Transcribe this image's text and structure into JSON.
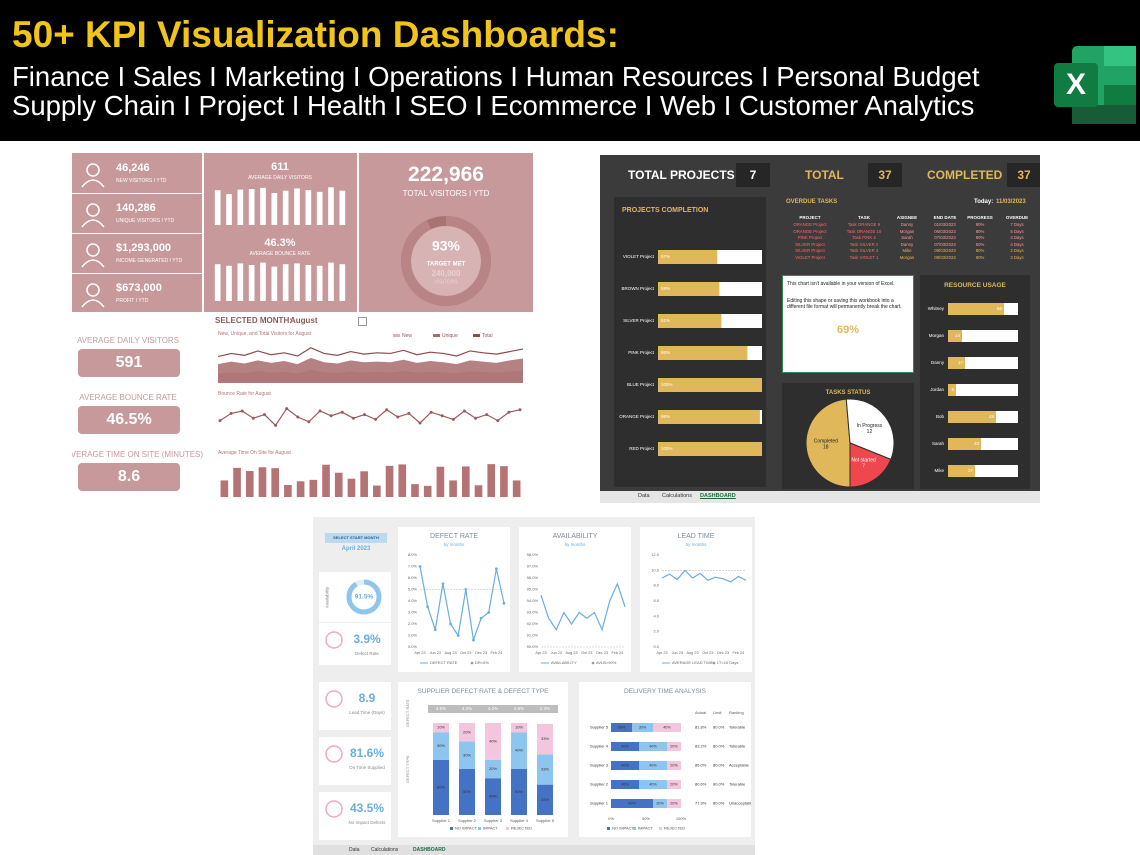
{
  "header": {
    "title": "50+ KPI Visualization Dashboards:",
    "line1": "Finance I Sales I Marketing I Operations I Human Resources I Personal Budget",
    "line2": "Supply Chain I Project I Health I SEO I Ecommerce I Web I Customer Analytics",
    "icon_letter": "X"
  },
  "web_dashboard": {
    "kpis": [
      {
        "value": "46,246",
        "label": "NEW VISITORS I YTD"
      },
      {
        "value": "140,286",
        "label": "UNIQUE VISITORS I YTD"
      },
      {
        "value": "$1,293,000",
        "label": "INCOME GENERATED I YTD"
      },
      {
        "value": "$673,000",
        "label": "PROFIT I YTD"
      }
    ],
    "avg_daily": {
      "value": "611",
      "label": "AVERAGE DAILY VISITORS",
      "ylim": [
        0,
        700
      ],
      "bars": [
        610,
        540,
        620,
        630,
        650,
        560,
        600,
        640,
        610,
        580,
        660,
        600
      ]
    },
    "bounce": {
      "value": "46.3%",
      "label": "AVERAGE BOUNCE RATE",
      "ylim": [
        0,
        50
      ],
      "bars": [
        46,
        44,
        47,
        45,
        48,
        43,
        46,
        47,
        45,
        44,
        48,
        46
      ]
    },
    "total": {
      "value": "222,966",
      "label": "TOTAL VISITORS I YTD",
      "gauge": 93,
      "glim": [
        0,
        100
      ],
      "gauge_label": "93%",
      "target_label": "TARGET MET",
      "target_value": "240,000",
      "target_unit": "VISITORS"
    },
    "month_label": "SELECTED MONTH:",
    "month": "August",
    "side": [
      {
        "label": "AVERAGE DAILY VISITORS",
        "value": "591"
      },
      {
        "label": "AVERAGE BOUNCE RATE",
        "value": "46.5%"
      },
      {
        "label": "AVERAGE TIME ON SITE (MINUTES)",
        "value": "8.6"
      }
    ],
    "visitors_chart": {
      "type": "area",
      "title": "New, Unique, and Total Visitors for August",
      "ylim": [
        0,
        700
      ],
      "series": [
        {
          "name": "New",
          "color": "#d8b6b7",
          "values": [
            150,
            170,
            160,
            190,
            165,
            180,
            150,
            210,
            170,
            160,
            185,
            170,
            175,
            170,
            190,
            165,
            180,
            170,
            155,
            185,
            175,
            165,
            185,
            200
          ]
        },
        {
          "name": "Unique",
          "color": "#a86b6d",
          "values": [
            300,
            340,
            310,
            360,
            320,
            350,
            300,
            400,
            330,
            310,
            360,
            330,
            340,
            330,
            370,
            320,
            350,
            330,
            300,
            360,
            340,
            320,
            360,
            390
          ]
        },
        {
          "name": "Total",
          "color": "#8e4a4c",
          "values": [
            420,
            470,
            440,
            510,
            450,
            480,
            430,
            560,
            470,
            440,
            500,
            460,
            480,
            470,
            520,
            450,
            490,
            470,
            430,
            510,
            480,
            460,
            500,
            540
          ]
        }
      ]
    },
    "bounce_chart": {
      "type": "line",
      "title": "Bounce Rate for August",
      "color": "#9c5a5c",
      "ylim": [
        30,
        60
      ],
      "values": [
        42,
        48,
        50,
        44,
        47,
        38,
        52,
        45,
        41,
        50,
        46,
        49,
        44,
        47,
        43,
        51,
        45,
        48,
        40,
        49,
        46,
        43,
        50,
        44,
        47,
        42,
        49,
        51
      ]
    },
    "time_chart": {
      "type": "bar",
      "title": "Average Time On Site for August",
      "color": "#b47375",
      "ylim": [
        0,
        14
      ],
      "values": [
        5.8,
        10.2,
        9.1,
        10.4,
        10.1,
        4.2,
        5.5,
        6.0,
        11.3,
        8.5,
        6.4,
        9.0,
        4.0,
        10.9,
        11.4,
        4.5,
        3.9,
        10.6,
        5.8,
        10.7,
        4.1,
        11.5,
        10.8,
        5.8
      ]
    }
  },
  "project_dashboard": {
    "tiles": [
      {
        "label": "TOTAL PROJECTS",
        "value": 7
      },
      {
        "label": "TOTAL",
        "value": 37
      },
      {
        "label": "COMPLETED",
        "value": 37
      }
    ],
    "completion": {
      "type": "bar",
      "title": "PROJECTS COMPLETION",
      "xlim": [
        0,
        100
      ],
      "color": "#e0b85a",
      "categories": [
        "VIOLET Project",
        "BROWN Project",
        "SILVER Project",
        "PINK Project",
        "BLUE Project",
        "ORANGE Project",
        "RED Project"
      ],
      "values": [
        57,
        59,
        61,
        86,
        100,
        98,
        100
      ],
      "value_labels": [
        "57%",
        "59%",
        "61%",
        "86%",
        "100%",
        "98%",
        "100%"
      ]
    },
    "overdue": {
      "title": "OVERDUE TASKS",
      "today_label": "Today:",
      "today": "11/03/2023",
      "columns": [
        "PROJECT",
        "TASK",
        "ASIGNEE",
        "END DATE",
        "PROGRESS",
        "OVERDUE"
      ],
      "rows": [
        [
          "ORANGE Project",
          "Task ORANGE 9",
          "Danny",
          "01/03/2023",
          "90%",
          "7 Days"
        ],
        [
          "ORANGE Project",
          "Task ORANGE 10",
          "Morgan",
          "06/03/2023",
          "80%",
          "5 Days"
        ],
        [
          "PINK Project",
          "Task PINK 4",
          "Sarah",
          "07/03/2023",
          "90%",
          "4 Days"
        ],
        [
          "SILVER Project",
          "Task SILVER 2",
          "Danny",
          "07/03/2023",
          "50%",
          "4 Days"
        ],
        [
          "SILVER Project",
          "Task SILVER 3",
          "Mike",
          "09/03/2023",
          "80%",
          "2 Days"
        ],
        [
          "VIOLET Project",
          "Task VIOLET 1",
          "Morgan",
          "08/03/2023",
          "90%",
          "3 Days"
        ]
      ]
    },
    "note": {
      "lines": [
        "This chart isn't available in your version of Excel.",
        "Editing this shape or saving this workbook into a different file format will permanently break the chart."
      ],
      "value": "69%"
    },
    "status": {
      "type": "pie",
      "title": "TASKS STATUS",
      "categories": [
        "Completed",
        "In Progress",
        "Not started"
      ],
      "values": [
        18,
        12,
        7
      ],
      "colors": [
        "#e0b85a",
        "#ffffff",
        "#f0474f"
      ]
    },
    "resources": {
      "type": "bar",
      "title": "RESOURCE USAGE",
      "xlim": [
        0,
        70
      ],
      "color": "#e0b85a",
      "categories": [
        "Whitney",
        "Morgan",
        "Danny",
        "Jordan",
        "Bob",
        "Sarah",
        "Mike"
      ],
      "values": [
        56,
        14,
        17,
        8,
        48,
        33,
        27
      ]
    },
    "tabs": [
      "Data",
      "Calculations",
      "DASHBOARD"
    ]
  },
  "supply_dashboard": {
    "month_select": {
      "label": "SELECT START MONTH",
      "value": "April 2023"
    },
    "availability": {
      "value": 91.5,
      "lim": [
        0,
        100
      ],
      "value_label": "91.5%",
      "label": "Availability"
    },
    "kpis": [
      {
        "value": "3.9%",
        "label": "Defect Rate"
      },
      {
        "value": "8.9",
        "label": "Lead Time (Days)"
      },
      {
        "value": "81.6%",
        "label": "On Time Supplied"
      },
      {
        "value": "43.5%",
        "label": "No Impact Defects"
      }
    ],
    "line_charts": [
      {
        "type": "line",
        "title": "DEFECT RATE",
        "subtitle": "by months",
        "color": "#6aaee0",
        "threshold": 5,
        "legend": [
          "DEFECT RATE",
          "DR<5%"
        ],
        "categories": [
          "Apr 23",
          null,
          "Jun 23",
          null,
          "Aug 23",
          null,
          "Oct 23",
          null,
          "Dec 23",
          null,
          "Feb 24",
          null
        ],
        "values": [
          7.0,
          3.5,
          1.5,
          5.5,
          2.0,
          1.0,
          5.0,
          0.6,
          2.5,
          3.0,
          6.8,
          3.8
        ],
        "ylim": [
          0,
          8
        ],
        "yticks": [
          {
            "value": 0,
            "label": "0.0%"
          },
          {
            "value": 1,
            "label": "1.0%"
          },
          {
            "value": 2,
            "label": "2.0%"
          },
          {
            "value": 3,
            "label": "3.0%"
          },
          {
            "value": 4,
            "label": "4.0%"
          },
          {
            "value": 5,
            "label": "5.0%"
          },
          {
            "value": 6,
            "label": "6.0%"
          },
          {
            "value": 7,
            "label": "7.0%"
          },
          {
            "value": 8,
            "label": "8.0%"
          }
        ]
      },
      {
        "type": "line",
        "title": "AVAILABILITY",
        "subtitle": "by months",
        "color": "#6aaee0",
        "threshold": 90,
        "legend": [
          "AVAILABILITY",
          "AVLB>90%"
        ],
        "categories": [
          "Apr 23",
          null,
          "Jun 23",
          null,
          "Aug 23",
          null,
          "Oct 23",
          null,
          "Dec 23",
          null,
          "Feb 24",
          null
        ],
        "values": [
          94.5,
          92.5,
          91.5,
          93.0,
          92.0,
          93.0,
          92.5,
          93.0,
          91.5,
          94.0,
          95.5,
          93.5
        ],
        "ylim": [
          90,
          98
        ],
        "yticks": [
          {
            "value": 90,
            "label": "90.0%"
          },
          {
            "value": 91,
            "label": "91.0%"
          },
          {
            "value": 92,
            "label": "92.0%"
          },
          {
            "value": 93,
            "label": "93.0%"
          },
          {
            "value": 94,
            "label": "94.0%"
          },
          {
            "value": 95,
            "label": "95.0%"
          },
          {
            "value": 96,
            "label": "96.0%"
          },
          {
            "value": 97,
            "label": "97.0%"
          },
          {
            "value": 98,
            "label": "98.0%"
          }
        ]
      },
      {
        "type": "line",
        "title": "LEAD TIME",
        "subtitle": "by months",
        "color": "#6aaee0",
        "threshold": 10,
        "legend": [
          "AVERAGE LEAD TIME",
          "LT<10 Days"
        ],
        "categories": [
          "Apr 23",
          null,
          "Jun 23",
          null,
          "Aug 23",
          null,
          "Oct 23",
          null,
          "Dec 23",
          null,
          "Feb 24",
          null
        ],
        "values": [
          9.0,
          9.5,
          8.8,
          10.0,
          9.0,
          9.6,
          8.7,
          9.1,
          8.9,
          8.5,
          9.2,
          8.7
        ],
        "ylim": [
          0,
          12
        ],
        "yticks": [
          {
            "value": 0,
            "label": "0.0"
          },
          {
            "value": 2,
            "label": "2.0"
          },
          {
            "value": 4,
            "label": "4.0"
          },
          {
            "value": 6,
            "label": "6.0"
          },
          {
            "value": 8,
            "label": "8.0"
          },
          {
            "value": 10,
            "label": "10.0"
          },
          {
            "value": 12,
            "label": "12.0"
          }
        ]
      }
    ],
    "defect_chart": {
      "type": "stacked-bar",
      "title": "SUPPLIER DEFECT RATE & DEFECT TYPE",
      "rate_axis": "DEFECT RATE",
      "type_axis": "DEFECT TYPE",
      "rates": [
        "4.5%",
        "4.2%",
        "4.2%",
        "4.6%",
        "2.3%"
      ],
      "categories": [
        "Supplier 1",
        "Supplier 2",
        "Supplier 3",
        "Supplier 4",
        "Supplier 5"
      ],
      "ylim": [
        0,
        100
      ],
      "series": [
        {
          "name": "NO IMPACT",
          "color": "#4472c4",
          "values": [
            60,
            50,
            40,
            50,
            33
          ],
          "value_labels": [
            "60%",
            "50%",
            "40%",
            "50%",
            "33%"
          ]
        },
        {
          "name": "IMPACT",
          "color": "#8ec5ee",
          "values": [
            30,
            30,
            20,
            40,
            33
          ],
          "value_labels": [
            "30%",
            "30%",
            "20%",
            "40%",
            "33%"
          ]
        },
        {
          "name": "REJECTED",
          "color": "#f4c6dd",
          "values": [
            10,
            20,
            40,
            10,
            33
          ],
          "value_labels": [
            "10%",
            "20%",
            "40%",
            "10%",
            "33%"
          ]
        }
      ]
    },
    "delivery_chart": {
      "type": "stacked-barh",
      "title": "DELIVERY TIME ANALYSIS",
      "columns": [
        "Actual",
        "Limit",
        "Ranking"
      ],
      "categories": [
        "Supplier 5",
        "Supplier 4",
        "Supplier 3",
        "Supplier 2",
        "Supplier 1"
      ],
      "rows": [
        [
          "81.8%",
          "80.0%",
          "Tolerable"
        ],
        [
          "83.2%",
          "80.0%",
          "Tolerable"
        ],
        [
          "85.0%",
          "80.0%",
          "Acceptable"
        ],
        [
          "80.6%",
          "80.0%",
          "Tolerable"
        ],
        [
          "77.9%",
          "80.0%",
          "Unacceptable"
        ]
      ],
      "xlim": [
        0,
        100
      ],
      "xticks": [
        {
          "value": 0,
          "label": "0%"
        },
        {
          "value": 50,
          "label": "50%"
        },
        {
          "value": 100,
          "label": "100%"
        }
      ],
      "series": [
        {
          "name": "NO IMPACT",
          "color": "#4472c4",
          "values": [
            30,
            40,
            40,
            40,
            60
          ],
          "value_labels": [
            "30%",
            "40%",
            "40%",
            "40%",
            "60%"
          ]
        },
        {
          "name": "IMPACT",
          "color": "#8ec5ee",
          "values": [
            30,
            40,
            40,
            40,
            20
          ],
          "value_labels": [
            "30%",
            "40%",
            "40%",
            "40%",
            "20%"
          ]
        },
        {
          "name": "REJECTED",
          "color": "#f4c6dd",
          "values": [
            40,
            20,
            20,
            20,
            20
          ],
          "value_labels": [
            "40%",
            "20%",
            "20%",
            "20%",
            "20%"
          ]
        }
      ]
    },
    "tabs": [
      "Data",
      "Calculations",
      "DASHBOARD"
    ]
  }
}
